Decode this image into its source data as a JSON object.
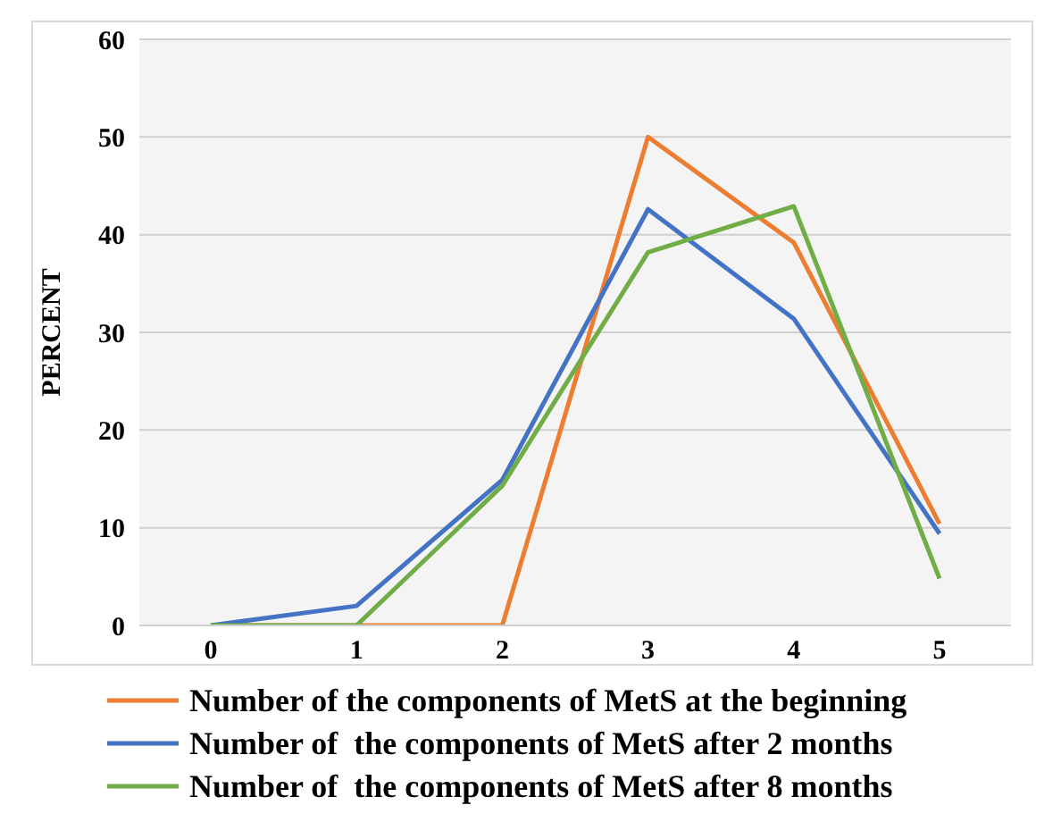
{
  "chart_data": {
    "type": "line",
    "ylabel": "PERCENT",
    "categories": [
      "0",
      "1",
      "2",
      "3",
      "4",
      "5"
    ],
    "series": [
      {
        "name": "Number of the components of MetS at the beginning",
        "color": "#ed7d31",
        "values": [
          0,
          0,
          0,
          50,
          39.2,
          10.4
        ]
      },
      {
        "name": "Number of  the components of MetS after 2 months",
        "color": "#4472c4",
        "values": [
          0,
          2,
          14.9,
          42.6,
          31.4,
          9.4
        ]
      },
      {
        "name": "Number of  the components of MetS after 8 months",
        "color": "#70ad47",
        "values": [
          0,
          0,
          14.3,
          38.2,
          42.9,
          4.8
        ]
      }
    ],
    "ylim": [
      0,
      60
    ],
    "yticks": [
      0,
      10,
      20,
      30,
      40,
      50,
      60
    ],
    "grid": "y",
    "legend": "bottom",
    "marker": "none",
    "line_style": "solid"
  }
}
